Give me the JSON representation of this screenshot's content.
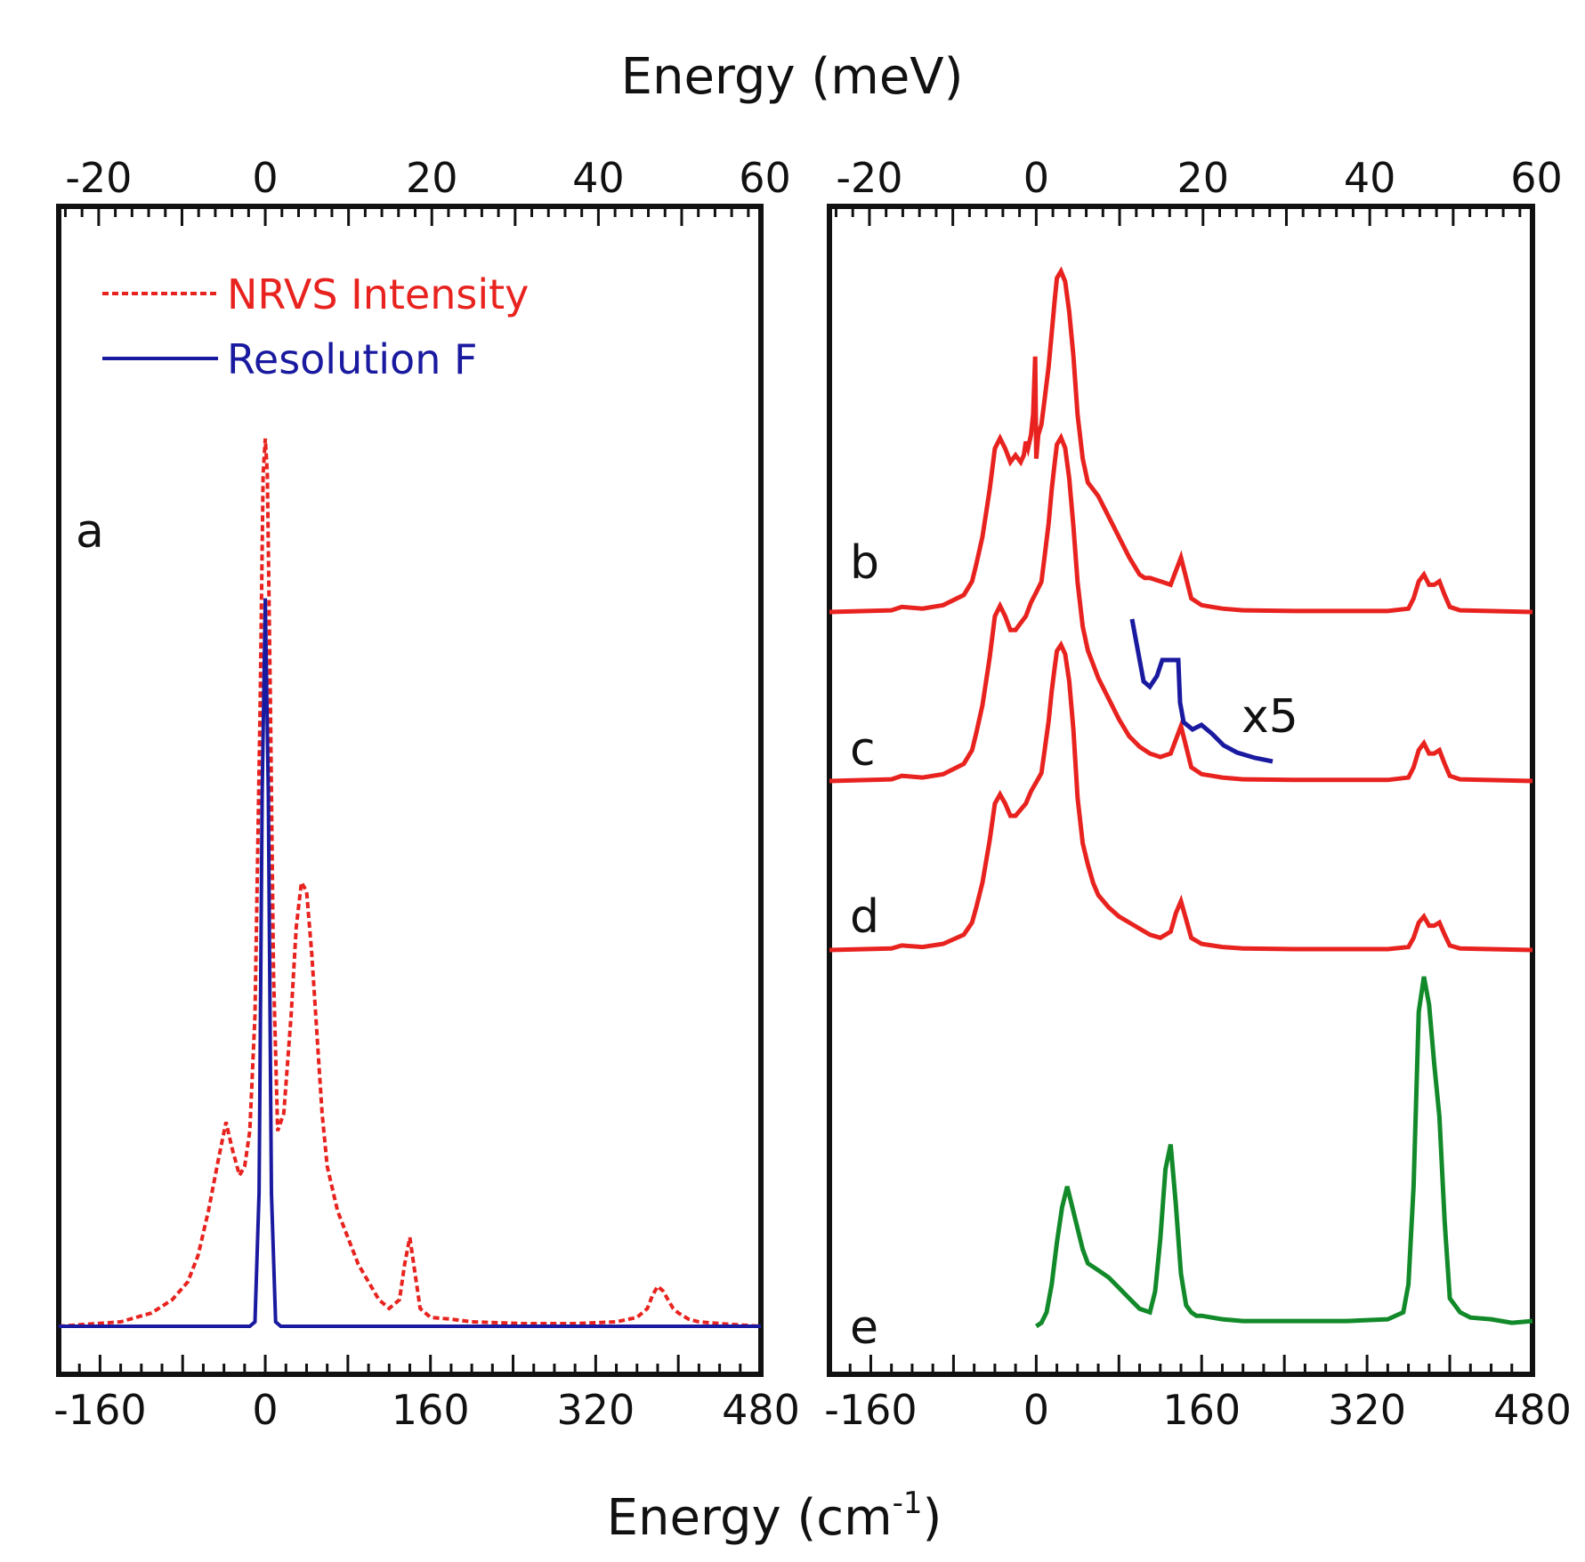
{
  "colors": {
    "nrvs": "#e8231f",
    "resolution": "#1a1aa0",
    "spectra": "#e8231f",
    "spectrum_e": "#128a2a",
    "inset": "#1a1aa0",
    "frame": "#111111"
  },
  "axes": {
    "top_title": "Energy (meV)",
    "bottom_title_main": "Energy (cm",
    "bottom_title_sup": "-1",
    "bottom_title_end": ")"
  },
  "chart_data": [
    {
      "type": "line",
      "panel": "a",
      "panel_label": "a",
      "xlim_cm": [
        -200,
        480
      ],
      "xlim_mev": [
        -24.8,
        59.5
      ],
      "bottom_ticks": [
        "-160",
        "0",
        "160",
        "320",
        "480"
      ],
      "bottom_tick_values": [
        -160,
        0,
        160,
        320,
        480
      ],
      "top_ticks": [
        "-20",
        "0",
        "20",
        "40",
        "60"
      ],
      "top_tick_values": [
        -20,
        0,
        20,
        40,
        60
      ],
      "legend": {
        "position": "top-left",
        "entries": [
          "NRVS Intensity",
          "Resolution F"
        ]
      },
      "series": [
        {
          "name": "NRVS Intensity",
          "style": "dashed",
          "x": [
            -200,
            -140,
            -110,
            -90,
            -75,
            -65,
            -55,
            -45,
            -38,
            -32,
            -25,
            -20,
            -15,
            -10,
            -5,
            -2,
            0,
            2,
            5,
            8,
            12,
            18,
            25,
            30,
            35,
            40,
            45,
            50,
            55,
            60,
            70,
            80,
            90,
            100,
            110,
            120,
            130,
            135,
            140,
            145,
            150,
            160,
            180,
            200,
            250,
            300,
            340,
            360,
            370,
            375,
            380,
            385,
            390,
            395,
            400,
            410,
            420,
            440,
            480
          ],
          "y": [
            0,
            0.5,
            1.5,
            3,
            5,
            8,
            13,
            19,
            23,
            20,
            17,
            18,
            22,
            35,
            70,
            96,
            100,
            96,
            70,
            40,
            22,
            24,
            35,
            45,
            50,
            49,
            42,
            33,
            24,
            18,
            13,
            10,
            7,
            5,
            3,
            2,
            3,
            7,
            10,
            6,
            2,
            1,
            0.8,
            0.5,
            0.3,
            0.3,
            0.5,
            1,
            2,
            3.5,
            4.5,
            4,
            3,
            2,
            1.5,
            0.8,
            0.5,
            0.3,
            0
          ]
        },
        {
          "name": "Resolution F",
          "style": "solid",
          "x": [
            -200,
            -15,
            -10,
            -6,
            -3,
            0,
            3,
            6,
            10,
            15,
            480
          ],
          "y": [
            0,
            0,
            0.5,
            15,
            60,
            82,
            60,
            15,
            0.5,
            0,
            0
          ]
        }
      ]
    },
    {
      "type": "line",
      "panel": "right",
      "xlim_cm": [
        -200,
        480
      ],
      "xlim_mev": [
        -24.8,
        59.5
      ],
      "bottom_ticks": [
        "-160",
        "0",
        "160",
        "320",
        "480"
      ],
      "bottom_tick_values": [
        -160,
        0,
        160,
        320,
        480
      ],
      "top_ticks": [
        "-20",
        "0",
        "20",
        "40",
        "60"
      ],
      "top_tick_values": [
        -20,
        0,
        20,
        40,
        60
      ],
      "annotations": [
        "x5"
      ],
      "series": [
        {
          "label": "b",
          "x": [
            -200,
            -140,
            -130,
            -110,
            -90,
            -70,
            -62,
            -58,
            -52,
            -45,
            -40,
            -35,
            -30,
            -25,
            -20,
            -15,
            -12,
            -10,
            -8,
            -5,
            -3,
            -1,
            0,
            2,
            5,
            8,
            12,
            15,
            18,
            20,
            24,
            28,
            32,
            36,
            40,
            45,
            50,
            55,
            60,
            70,
            80,
            90,
            100,
            105,
            110,
            120,
            130,
            135,
            140,
            145,
            150,
            160,
            170,
            180,
            200,
            250,
            300,
            340,
            360,
            365,
            370,
            375,
            380,
            385,
            390,
            395,
            400,
            410,
            480
          ],
          "y": [
            0,
            0.5,
            1.5,
            1,
            2,
            5,
            9,
            14,
            22,
            36,
            48,
            51,
            48,
            44,
            46,
            44,
            46,
            50,
            48,
            52,
            58,
            75,
            45,
            52,
            55,
            62,
            72,
            82,
            92,
            98,
            100,
            97,
            88,
            75,
            58,
            45,
            38,
            36,
            34,
            28,
            22,
            16,
            11,
            10,
            10,
            9,
            8,
            12,
            16,
            10,
            4,
            2,
            1.5,
            1,
            0.5,
            0.3,
            0.3,
            0.3,
            1,
            4,
            9,
            11,
            8,
            8,
            9,
            5,
            1.5,
            0.5,
            0
          ]
        },
        {
          "label": "c",
          "x": [
            -200,
            -140,
            -130,
            -110,
            -90,
            -70,
            -62,
            -58,
            -52,
            -45,
            -40,
            -35,
            -30,
            -25,
            -20,
            -15,
            -10,
            -5,
            0,
            5,
            8,
            12,
            15,
            18,
            20,
            24,
            28,
            32,
            36,
            40,
            45,
            50,
            55,
            60,
            70,
            80,
            90,
            100,
            110,
            120,
            130,
            135,
            140,
            145,
            150,
            160,
            170,
            180,
            200,
            250,
            300,
            340,
            360,
            365,
            370,
            375,
            380,
            385,
            390,
            395,
            400,
            410,
            480
          ],
          "y": [
            0,
            0.5,
            1.5,
            1,
            2,
            5,
            9,
            14,
            22,
            36,
            48,
            51,
            48,
            44,
            44,
            46,
            48,
            52,
            55,
            58,
            65,
            75,
            85,
            93,
            98,
            100,
            97,
            88,
            74,
            58,
            45,
            38,
            34,
            30,
            24,
            18,
            13,
            10,
            8,
            7,
            8,
            12,
            16,
            10,
            4,
            2,
            1.5,
            1,
            0.5,
            0.3,
            0.3,
            0.3,
            1,
            4,
            9,
            11,
            8,
            8,
            9,
            5,
            1.5,
            0.5,
            0
          ]
        },
        {
          "label": "d",
          "x": [
            -200,
            -140,
            -130,
            -110,
            -90,
            -70,
            -62,
            -58,
            -52,
            -45,
            -40,
            -35,
            -30,
            -25,
            -20,
            -15,
            -10,
            -5,
            0,
            5,
            8,
            12,
            15,
            18,
            20,
            24,
            28,
            32,
            36,
            40,
            45,
            50,
            55,
            60,
            70,
            80,
            90,
            100,
            110,
            120,
            130,
            135,
            140,
            145,
            150,
            160,
            170,
            180,
            200,
            250,
            300,
            340,
            360,
            365,
            370,
            375,
            380,
            385,
            390,
            395,
            400,
            410,
            480
          ],
          "y": [
            0,
            0.5,
            1.5,
            1,
            2,
            5,
            9,
            14,
            22,
            36,
            48,
            51,
            48,
            44,
            44,
            46,
            48,
            52,
            55,
            58,
            65,
            75,
            85,
            93,
            98,
            100,
            97,
            88,
            72,
            50,
            35,
            28,
            22,
            18,
            14,
            11,
            9,
            7,
            5,
            4,
            6,
            12,
            16,
            10,
            4,
            2,
            1.5,
            1,
            0.5,
            0.3,
            0.3,
            0.3,
            1,
            4,
            9,
            11,
            8,
            8,
            9,
            5,
            1.5,
            0.5,
            0
          ]
        },
        {
          "label": "e",
          "x": [
            0,
            5,
            10,
            15,
            20,
            25,
            30,
            35,
            40,
            45,
            50,
            55,
            60,
            70,
            80,
            90,
            100,
            110,
            115,
            120,
            125,
            130,
            135,
            140,
            145,
            150,
            155,
            160,
            170,
            180,
            200,
            250,
            300,
            340,
            355,
            360,
            365,
            370,
            375,
            380,
            385,
            390,
            395,
            400,
            410,
            420,
            440,
            460,
            480
          ],
          "y": [
            0,
            1,
            4,
            12,
            24,
            34,
            40,
            34,
            28,
            22,
            18,
            17,
            16,
            14,
            11,
            8,
            5,
            4,
            10,
            25,
            45,
            52,
            35,
            15,
            6,
            4,
            3,
            3,
            2.5,
            2,
            1.5,
            1.5,
            1.5,
            2,
            4,
            12,
            40,
            90,
            100,
            92,
            75,
            60,
            30,
            8,
            4,
            2.5,
            2,
            1,
            1.5
          ]
        }
      ]
    }
  ]
}
